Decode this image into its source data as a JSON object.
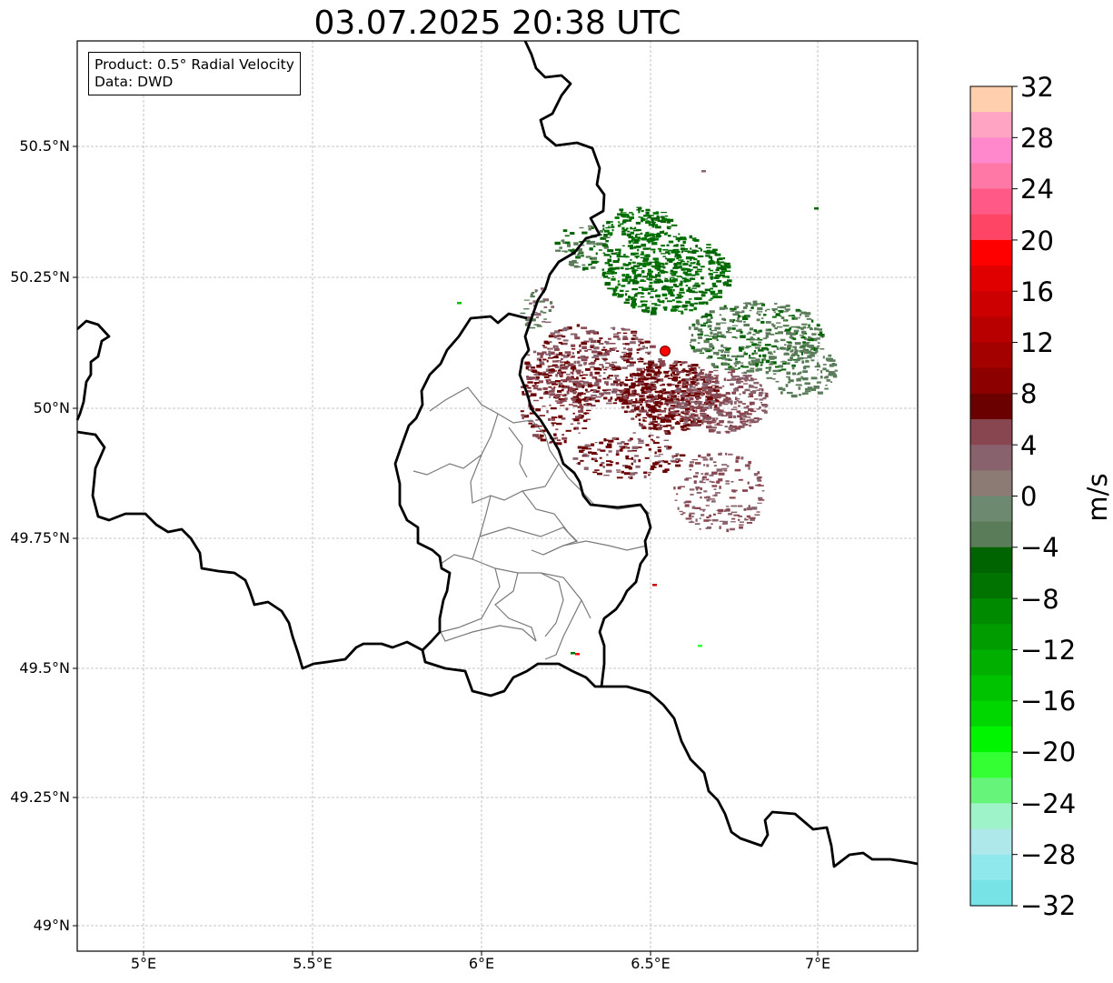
{
  "title": "03.07.2025 20:38 UTC",
  "info": {
    "product_line": "Product: 0.5° Radial Velocity",
    "data_line": "Data: DWD"
  },
  "axes": {
    "lat_ticks": [
      "50.5°N",
      "50.25°N",
      "50°N",
      "49.75°N",
      "49.5°N",
      "49.25°N",
      "49°N"
    ],
    "lon_ticks": [
      "5°E",
      "5.5°E",
      "6°E",
      "6.5°E",
      "7°E"
    ]
  },
  "colorbar": {
    "label": "m/s",
    "ticks": [
      "32",
      "28",
      "24",
      "20",
      "16",
      "12",
      "8",
      "4",
      "0",
      "−4",
      "−8",
      "−12",
      "−16",
      "−20",
      "−24",
      "−28",
      "−32"
    ],
    "colors_top_to_bottom": [
      "#ffcfae",
      "#ffa5c3",
      "#ff88cc",
      "#ff78a6",
      "#ff5a87",
      "#ff4565",
      "#fe0000",
      "#e10000",
      "#cc0000",
      "#b80000",
      "#a30000",
      "#8c0000",
      "#6b0000",
      "#874650",
      "#88636e",
      "#8c7a74",
      "#6d8a70",
      "#5a7c58",
      "#006400",
      "#007300",
      "#008a00",
      "#009c00",
      "#00af00",
      "#00c300",
      "#00d700",
      "#00f600",
      "#33ff33",
      "#66f57a",
      "#9ff3c8",
      "#aee8ea",
      "#8ee8ec",
      "#78e3e6"
    ]
  },
  "radar_site": {
    "lon": 6.548,
    "lat": 50.112,
    "color": "#ff0000"
  },
  "colors": {
    "outbound_dark": "#6b0000",
    "outbound_mid": "#874650",
    "outbound_light": "#88636e",
    "inbound_dark": "#006400",
    "inbound_mid": "#007300",
    "inbound_light": "#5a7c58"
  }
}
